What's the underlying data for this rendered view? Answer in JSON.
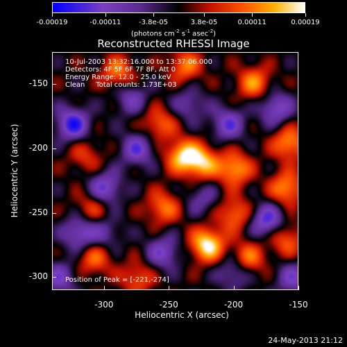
{
  "colors": {
    "background": "#000000",
    "text": "#ffffff",
    "colormap": [
      "#0000ff",
      "#7a3fc0",
      "#5a2a90",
      "#000000",
      "#c01000",
      "#ff5000",
      "#ffb000",
      "#ffffff"
    ]
  },
  "colorbar": {
    "ticks": [
      "-0.00019",
      "-0.00011",
      "-3.8e-05",
      "3.8e-05",
      "0.00011",
      "0.00019"
    ],
    "unit_a": "(photons cm",
    "unit_a_sup": "-2",
    "unit_b": " s",
    "unit_b_sup": "-1",
    "unit_c": " asec",
    "unit_c_sup": "-2",
    "unit_d": ")"
  },
  "chart_data": {
    "type": "heatmap",
    "title": "Reconstructed RHESSI Image",
    "xlabel": "Heliocentric X (arcsec)",
    "ylabel": "Heliocentric Y (arcsec)",
    "xlim": [
      -340,
      -150
    ],
    "ylim": [
      -310,
      -125
    ],
    "zlim": [
      -0.00019,
      0.00019
    ],
    "xticks": [
      "-300",
      "-250",
      "-200",
      "-150"
    ],
    "yticks": [
      "-150",
      "-200",
      "-250",
      "-300"
    ],
    "xtick_values": [
      -300,
      -250,
      -200,
      -150
    ],
    "ytick_values": [
      -150,
      -200,
      -250,
      -300
    ],
    "annotations": [
      "10-Jul-2003 13:32:16.000 to 13:37:06.000",
      "Detectors: 4F 5F 6F 7F 8F, Att 0",
      "Energy Range: 12.0 - 25.0 keV",
      "Clean     Total counts: 1.73E+03"
    ],
    "peak_label": "Position of Peak = [-221,-274]",
    "peak": [
      -221,
      -274
    ],
    "blobs": [
      {
        "x": -221,
        "y": -274,
        "v": 0.00019
      },
      {
        "x": -240,
        "y": -205,
        "v": 0.00016
      },
      {
        "x": -225,
        "y": -210,
        "v": 0.00015
      },
      {
        "x": -200,
        "y": -215,
        "v": 0.00014
      },
      {
        "x": -160,
        "y": -230,
        "v": 0.00013
      },
      {
        "x": -158,
        "y": -195,
        "v": 0.00013
      },
      {
        "x": -185,
        "y": -148,
        "v": 0.00012
      },
      {
        "x": -238,
        "y": -135,
        "v": 0.00011
      },
      {
        "x": -290,
        "y": -140,
        "v": 0.00011
      },
      {
        "x": -258,
        "y": -180,
        "v": 0.0001
      },
      {
        "x": -255,
        "y": -245,
        "v": 0.00011
      },
      {
        "x": -200,
        "y": -250,
        "v": 0.00011
      },
      {
        "x": -308,
        "y": -285,
        "v": 0.0001
      },
      {
        "x": -275,
        "y": -300,
        "v": 9e-05
      },
      {
        "x": -190,
        "y": -285,
        "v": 0.00012
      },
      {
        "x": -160,
        "y": -270,
        "v": 0.0001
      },
      {
        "x": -310,
        "y": -245,
        "v": 8e-05
      },
      {
        "x": -315,
        "y": -205,
        "v": 7e-05
      },
      {
        "x": -325,
        "y": -180,
        "v": -0.00016
      },
      {
        "x": -300,
        "y": -230,
        "v": -0.00013
      },
      {
        "x": -320,
        "y": -265,
        "v": -0.00012
      },
      {
        "x": -335,
        "y": -300,
        "v": -0.0001
      },
      {
        "x": -275,
        "y": -200,
        "v": -0.00012
      },
      {
        "x": -280,
        "y": -160,
        "v": -9e-05
      },
      {
        "x": -255,
        "y": -280,
        "v": -0.00011
      },
      {
        "x": -175,
        "y": -255,
        "v": -0.00014
      },
      {
        "x": -205,
        "y": -180,
        "v": -0.00012
      },
      {
        "x": -200,
        "y": -295,
        "v": -0.0001
      },
      {
        "x": -155,
        "y": -300,
        "v": -0.0001
      },
      {
        "x": -168,
        "y": -168,
        "v": -0.00012
      },
      {
        "x": -235,
        "y": -165,
        "v": -8e-05
      },
      {
        "x": -225,
        "y": -238,
        "v": -7e-05
      },
      {
        "x": -300,
        "y": -265,
        "v": -7e-05
      }
    ]
  },
  "footer": {
    "date": "24-May-2013 21:12"
  }
}
